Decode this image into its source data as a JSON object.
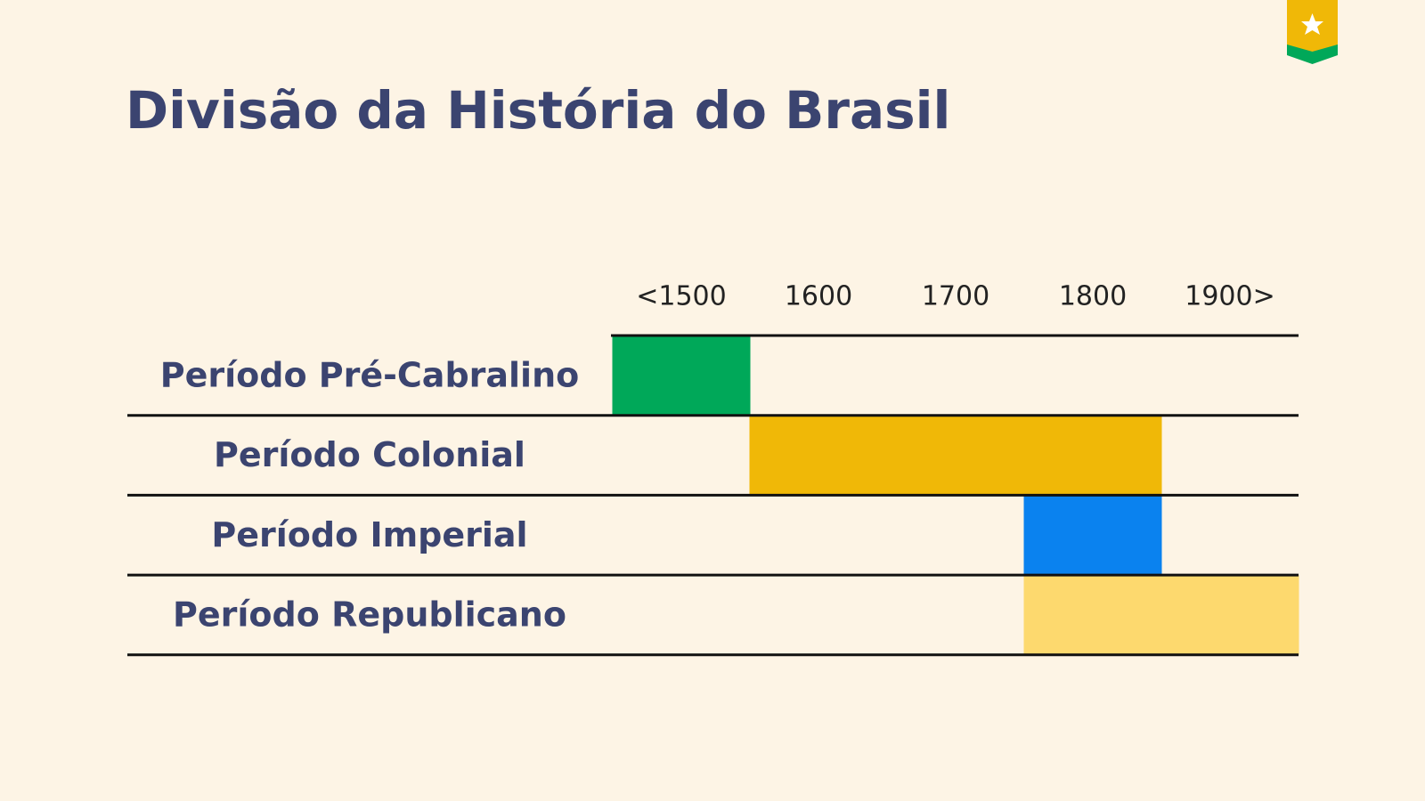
{
  "title": "Divisão da História do Brasil",
  "table": {
    "columns": [
      "<1500",
      "1600",
      "1700",
      "1800",
      "1900>"
    ],
    "rows": [
      {
        "label": "Período Pré-Cabralino",
        "color": "#00a859",
        "filled": [
          true,
          false,
          false,
          false,
          false
        ]
      },
      {
        "label": "Período Colonial",
        "color": "#f0b807",
        "filled": [
          false,
          true,
          true,
          true,
          false
        ]
      },
      {
        "label": "Período Imperial",
        "color": "#0a82ef",
        "filled": [
          false,
          false,
          false,
          true,
          false
        ]
      },
      {
        "label": "Período Republicano",
        "color": "#fdd96e",
        "filled": [
          false,
          false,
          false,
          true,
          true
        ]
      }
    ]
  }
}
